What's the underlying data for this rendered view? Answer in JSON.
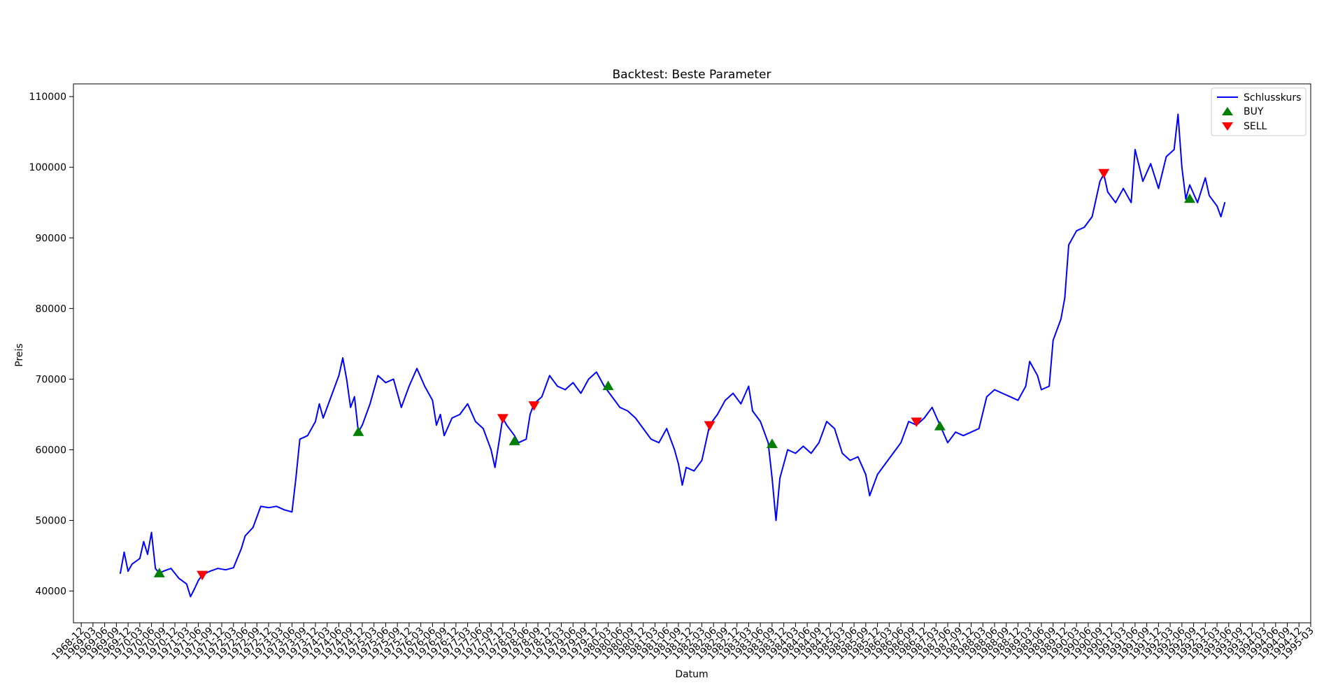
{
  "chart_data": {
    "type": "line",
    "title": "Backtest: Beste Parameter",
    "xlabel": "Datum",
    "ylabel": "Preis",
    "ylim": [
      35500,
      111800
    ],
    "xlim": [
      "1968-10",
      "1995-03"
    ],
    "yticks": [
      40000,
      50000,
      60000,
      70000,
      80000,
      90000,
      100000,
      110000
    ],
    "xtick_start": "1968-12",
    "xtick_end": "1995-03",
    "xtick_step_months": 3,
    "grid": false,
    "legend": {
      "position": "top-right",
      "entries": [
        "Schlusskurs",
        "BUY",
        "SELL"
      ]
    },
    "colors": {
      "line": "#0000ff",
      "buy": "#008000",
      "sell": "#ff0000"
    },
    "series": [
      {
        "name": "Schlusskurs",
        "points": [
          [
            "1969-10",
            42500
          ],
          [
            "1969-11",
            45500
          ],
          [
            "1969-12",
            42800
          ],
          [
            "1970-01",
            43800
          ],
          [
            "1970-02",
            44200
          ],
          [
            "1970-03",
            44600
          ],
          [
            "1970-04",
            47000
          ],
          [
            "1970-05",
            45200
          ],
          [
            "1970-06",
            48300
          ],
          [
            "1970-07",
            43200
          ],
          [
            "1970-08",
            42500
          ],
          [
            "1970-09",
            42800
          ],
          [
            "1970-11",
            43200
          ],
          [
            "1971-01",
            41800
          ],
          [
            "1971-03",
            41000
          ],
          [
            "1971-04",
            39200
          ],
          [
            "1971-05",
            40300
          ],
          [
            "1971-06",
            41500
          ],
          [
            "1971-07",
            42300
          ],
          [
            "1971-09",
            42800
          ],
          [
            "1971-11",
            43200
          ],
          [
            "1972-01",
            43000
          ],
          [
            "1972-03",
            43300
          ],
          [
            "1972-05",
            46000
          ],
          [
            "1972-06",
            47800
          ],
          [
            "1972-08",
            49000
          ],
          [
            "1972-10",
            52000
          ],
          [
            "1972-12",
            51800
          ],
          [
            "1973-02",
            52000
          ],
          [
            "1973-04",
            51500
          ],
          [
            "1973-06",
            51200
          ],
          [
            "1973-07",
            56000
          ],
          [
            "1973-08",
            61500
          ],
          [
            "1973-10",
            62000
          ],
          [
            "1973-12",
            64000
          ],
          [
            "1974-01",
            66500
          ],
          [
            "1974-02",
            64500
          ],
          [
            "1974-04",
            67500
          ],
          [
            "1974-06",
            70500
          ],
          [
            "1974-07",
            73000
          ],
          [
            "1974-08",
            70000
          ],
          [
            "1974-09",
            66000
          ],
          [
            "1974-10",
            67500
          ],
          [
            "1974-11",
            62500
          ],
          [
            "1974-12",
            63500
          ],
          [
            "1975-02",
            66500
          ],
          [
            "1975-04",
            70500
          ],
          [
            "1975-06",
            69500
          ],
          [
            "1975-08",
            70000
          ],
          [
            "1975-10",
            66000
          ],
          [
            "1975-12",
            69000
          ],
          [
            "1976-02",
            71500
          ],
          [
            "1976-04",
            69000
          ],
          [
            "1976-06",
            67000
          ],
          [
            "1976-07",
            63500
          ],
          [
            "1976-08",
            65000
          ],
          [
            "1976-09",
            62000
          ],
          [
            "1976-11",
            64500
          ],
          [
            "1977-01",
            65000
          ],
          [
            "1977-03",
            66500
          ],
          [
            "1977-05",
            64000
          ],
          [
            "1977-07",
            63000
          ],
          [
            "1977-09",
            60000
          ],
          [
            "1977-10",
            57500
          ],
          [
            "1977-11",
            61000
          ],
          [
            "1977-12",
            64500
          ],
          [
            "1978-01",
            63500
          ],
          [
            "1978-03",
            62000
          ],
          [
            "1978-04",
            61000
          ],
          [
            "1978-06",
            61500
          ],
          [
            "1978-07",
            65000
          ],
          [
            "1978-08",
            66500
          ],
          [
            "1978-10",
            67500
          ],
          [
            "1978-12",
            70500
          ],
          [
            "1979-02",
            69000
          ],
          [
            "1979-04",
            68500
          ],
          [
            "1979-06",
            69500
          ],
          [
            "1979-08",
            68000
          ],
          [
            "1979-10",
            70000
          ],
          [
            "1979-12",
            71000
          ],
          [
            "1980-02",
            69000
          ],
          [
            "1980-04",
            67500
          ],
          [
            "1980-06",
            66000
          ],
          [
            "1980-08",
            65500
          ],
          [
            "1980-10",
            64500
          ],
          [
            "1980-12",
            63000
          ],
          [
            "1981-02",
            61500
          ],
          [
            "1981-04",
            61000
          ],
          [
            "1981-06",
            63000
          ],
          [
            "1981-08",
            60000
          ],
          [
            "1981-09",
            58000
          ],
          [
            "1981-10",
            55000
          ],
          [
            "1981-11",
            57500
          ],
          [
            "1982-01",
            57000
          ],
          [
            "1982-03",
            58500
          ],
          [
            "1982-05",
            63500
          ],
          [
            "1982-07",
            65000
          ],
          [
            "1982-09",
            67000
          ],
          [
            "1982-11",
            68000
          ],
          [
            "1983-01",
            66500
          ],
          [
            "1983-03",
            69000
          ],
          [
            "1983-04",
            65500
          ],
          [
            "1983-06",
            64000
          ],
          [
            "1983-08",
            61000
          ],
          [
            "1983-09",
            56000
          ],
          [
            "1983-10",
            50000
          ],
          [
            "1983-11",
            56000
          ],
          [
            "1984-01",
            60000
          ],
          [
            "1984-03",
            59500
          ],
          [
            "1984-05",
            60500
          ],
          [
            "1984-07",
            59500
          ],
          [
            "1984-09",
            61000
          ],
          [
            "1984-11",
            64000
          ],
          [
            "1985-01",
            63000
          ],
          [
            "1985-03",
            59500
          ],
          [
            "1985-05",
            58500
          ],
          [
            "1985-07",
            59000
          ],
          [
            "1985-09",
            56500
          ],
          [
            "1985-10",
            53500
          ],
          [
            "1985-12",
            56500
          ],
          [
            "1986-02",
            58000
          ],
          [
            "1986-04",
            59500
          ],
          [
            "1986-06",
            61000
          ],
          [
            "1986-08",
            64000
          ],
          [
            "1986-10",
            63500
          ],
          [
            "1986-12",
            64500
          ],
          [
            "1987-02",
            66000
          ],
          [
            "1987-04",
            63500
          ],
          [
            "1987-06",
            61000
          ],
          [
            "1987-08",
            62500
          ],
          [
            "1987-10",
            62000
          ],
          [
            "1987-12",
            62500
          ],
          [
            "1988-02",
            63000
          ],
          [
            "1988-04",
            67500
          ],
          [
            "1988-06",
            68500
          ],
          [
            "1988-08",
            68000
          ],
          [
            "1988-10",
            67500
          ],
          [
            "1988-12",
            67000
          ],
          [
            "1989-02",
            69000
          ],
          [
            "1989-03",
            72500
          ],
          [
            "1989-05",
            70500
          ],
          [
            "1989-06",
            68500
          ],
          [
            "1989-08",
            69000
          ],
          [
            "1989-09",
            75500
          ],
          [
            "1989-11",
            78500
          ],
          [
            "1989-12",
            81500
          ],
          [
            "1990-01",
            89000
          ],
          [
            "1990-03",
            91000
          ],
          [
            "1990-05",
            91500
          ],
          [
            "1990-07",
            93000
          ],
          [
            "1990-09",
            98000
          ],
          [
            "1990-10",
            99000
          ],
          [
            "1990-11",
            96500
          ],
          [
            "1991-01",
            95000
          ],
          [
            "1991-03",
            97000
          ],
          [
            "1991-05",
            95000
          ],
          [
            "1991-06",
            102500
          ],
          [
            "1991-08",
            98000
          ],
          [
            "1991-10",
            100500
          ],
          [
            "1991-12",
            97000
          ],
          [
            "1992-02",
            101500
          ],
          [
            "1992-04",
            102500
          ],
          [
            "1992-05",
            107500
          ],
          [
            "1992-06",
            100000
          ],
          [
            "1992-07",
            95500
          ],
          [
            "1992-08",
            97500
          ],
          [
            "1992-10",
            95000
          ],
          [
            "1992-12",
            98500
          ],
          [
            "1993-01",
            96000
          ],
          [
            "1993-03",
            94500
          ],
          [
            "1993-04",
            93000
          ],
          [
            "1993-05",
            95000
          ]
        ]
      },
      {
        "name": "BUY",
        "marker": "triangle-up",
        "points": [
          [
            "1970-08",
            42500
          ],
          [
            "1974-11",
            62500
          ],
          [
            "1978-03",
            61200
          ],
          [
            "1980-03",
            69000
          ],
          [
            "1983-09",
            60800
          ],
          [
            "1987-04",
            63300
          ],
          [
            "1992-08",
            95500
          ]
        ]
      },
      {
        "name": "SELL",
        "marker": "triangle-down",
        "points": [
          [
            "1971-07",
            42300
          ],
          [
            "1977-12",
            64500
          ],
          [
            "1978-08",
            66300
          ],
          [
            "1982-05",
            63500
          ],
          [
            "1986-10",
            64000
          ],
          [
            "1990-10",
            99200
          ]
        ]
      }
    ]
  }
}
